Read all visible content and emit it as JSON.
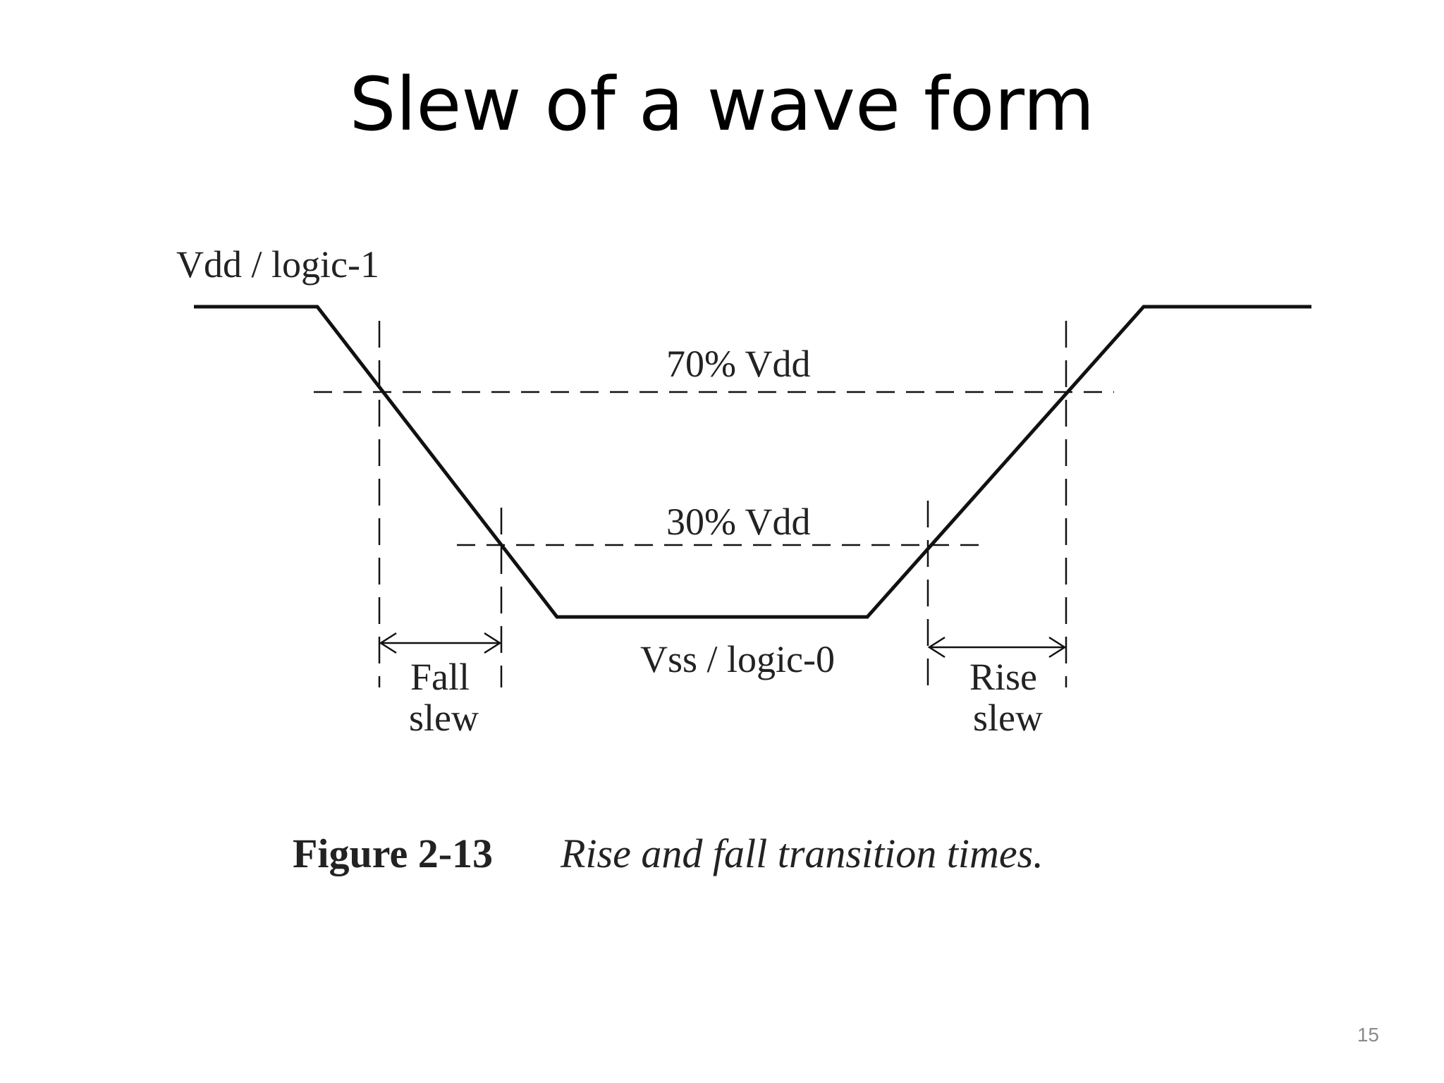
{
  "slide": {
    "title": "Slew of a wave form",
    "page_number": "15"
  },
  "diagram": {
    "labels": {
      "vdd": "Vdd / logic-1",
      "vss": "Vss / logic-0",
      "level_70": "70% Vdd",
      "level_30": "30% Vdd",
      "fall_1": "Fall",
      "fall_2": "slew",
      "rise_1": "Rise",
      "rise_2": "slew"
    },
    "caption": {
      "number": "Figure 2-13",
      "text": "Rise and fall transition times."
    },
    "colors": {
      "line": "#111111",
      "text": "#222222"
    }
  }
}
